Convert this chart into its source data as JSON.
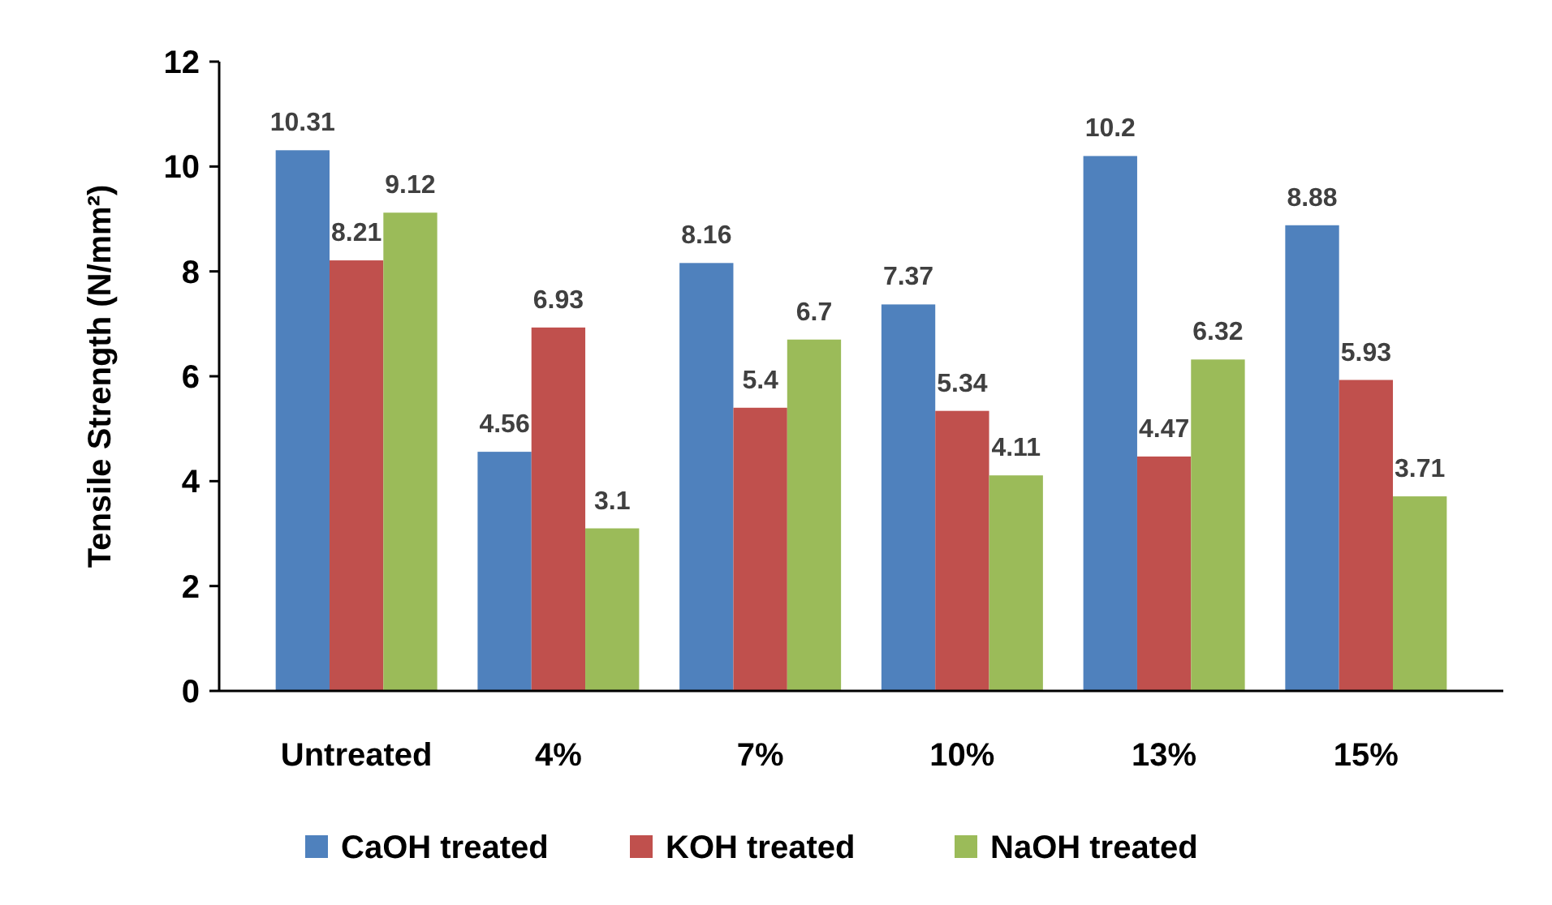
{
  "chart_data": {
    "type": "bar",
    "ylabel": "Tensile Strength (N/mm²)",
    "categories": [
      "Untreated",
      "4%",
      "7%",
      "10%",
      "13%",
      "15%"
    ],
    "series": [
      {
        "name": "CaOH treated",
        "color": "#4f81bd",
        "values": [
          10.31,
          4.56,
          8.16,
          7.37,
          10.2,
          8.88
        ]
      },
      {
        "name": "KOH treated",
        "color": "#c0504d",
        "values": [
          8.21,
          6.93,
          5.4,
          5.34,
          4.47,
          5.93
        ]
      },
      {
        "name": "NaOH treated",
        "color": "#9bbb59",
        "values": [
          9.12,
          3.1,
          6.7,
          4.11,
          6.32,
          3.71
        ]
      }
    ],
    "ylim": [
      0,
      12
    ],
    "yticks": [
      0,
      2,
      4,
      6,
      8,
      10,
      12
    ],
    "data_labels": true,
    "legend": "bottom",
    "grid": false
  }
}
